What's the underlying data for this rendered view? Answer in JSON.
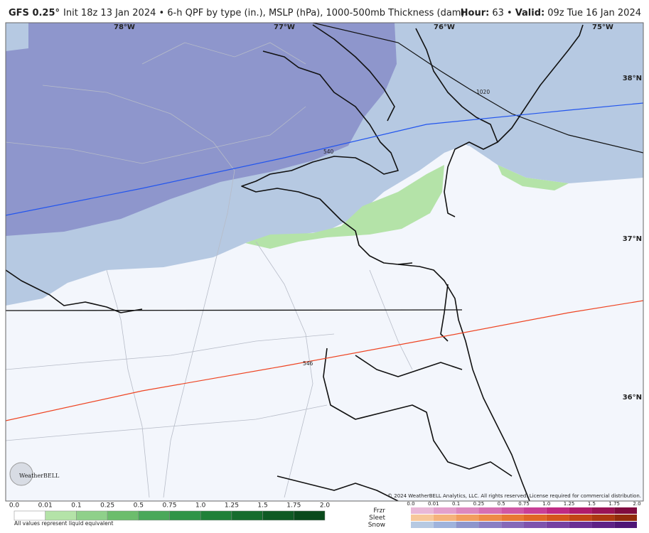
{
  "header": {
    "model": "GFS 0.25°",
    "description": "Init 18z 13 Jan 2024 • 6-h QPF by type (in.), MSLP (hPa), 1000-500mb Thickness (dam)",
    "hour_label": "Hour:",
    "hour": "63 •",
    "valid_label": "Valid:",
    "valid": "09z Tue 16 Jan 2024"
  },
  "map": {
    "longitudes": [
      "78°W",
      "77°W",
      "76°W",
      "75°W"
    ],
    "latitudes": [
      "38°N",
      "37°N",
      "36°N"
    ],
    "contour_labels": [
      "1020",
      "540",
      "546"
    ],
    "logo": "WeatherBELL",
    "copyright": "© 2024 WeatherBELL Analytics, LLC. All rights reserved. License required for commercial distribution."
  },
  "legend": {
    "rain_labels": [
      "0.0",
      "0.01",
      "0.1",
      "0.25",
      "0.5",
      "0.75",
      "1.0",
      "1.25",
      "1.5",
      "1.75",
      "2.0"
    ],
    "rain_colors": [
      "#ffffff",
      "#b4e3a8",
      "#8fd08a",
      "#6cbd6c",
      "#4aa85a",
      "#2f9447",
      "#1f8038",
      "#166c2d",
      "#0f5a24",
      "#0a4a1c"
    ],
    "note": "All values represent liquid equivalent",
    "ptype_labels": [
      "0.0",
      "0.01",
      "0.1",
      "0.25",
      "0.5",
      "0.75",
      "1.0",
      "1.25",
      "1.5",
      "1.75",
      "2.0"
    ],
    "ptype_rows": [
      {
        "name": "Frzr",
        "colors": [
          "#e9b8d8",
          "#e3a0cc",
          "#dc88bf",
          "#d66fb2",
          "#cf57a4",
          "#c83f96",
          "#bf2a83",
          "#b01c6c",
          "#9a1456",
          "#800c3f"
        ]
      },
      {
        "name": "Sleet",
        "colors": [
          "#f7c79a",
          "#f5b27c",
          "#f29d5f",
          "#ee8a47",
          "#e87834",
          "#e06626",
          "#d4551c",
          "#c24515",
          "#ac3810",
          "#922b0b"
        ]
      },
      {
        "name": "Snow",
        "colors": [
          "#b6c9e2",
          "#9fb3dc",
          "#8e96cc",
          "#8a7fc3",
          "#8569b8",
          "#7e54ad",
          "#7541a1",
          "#6a3094",
          "#5e2286",
          "#4f1676"
        ]
      }
    ]
  }
}
